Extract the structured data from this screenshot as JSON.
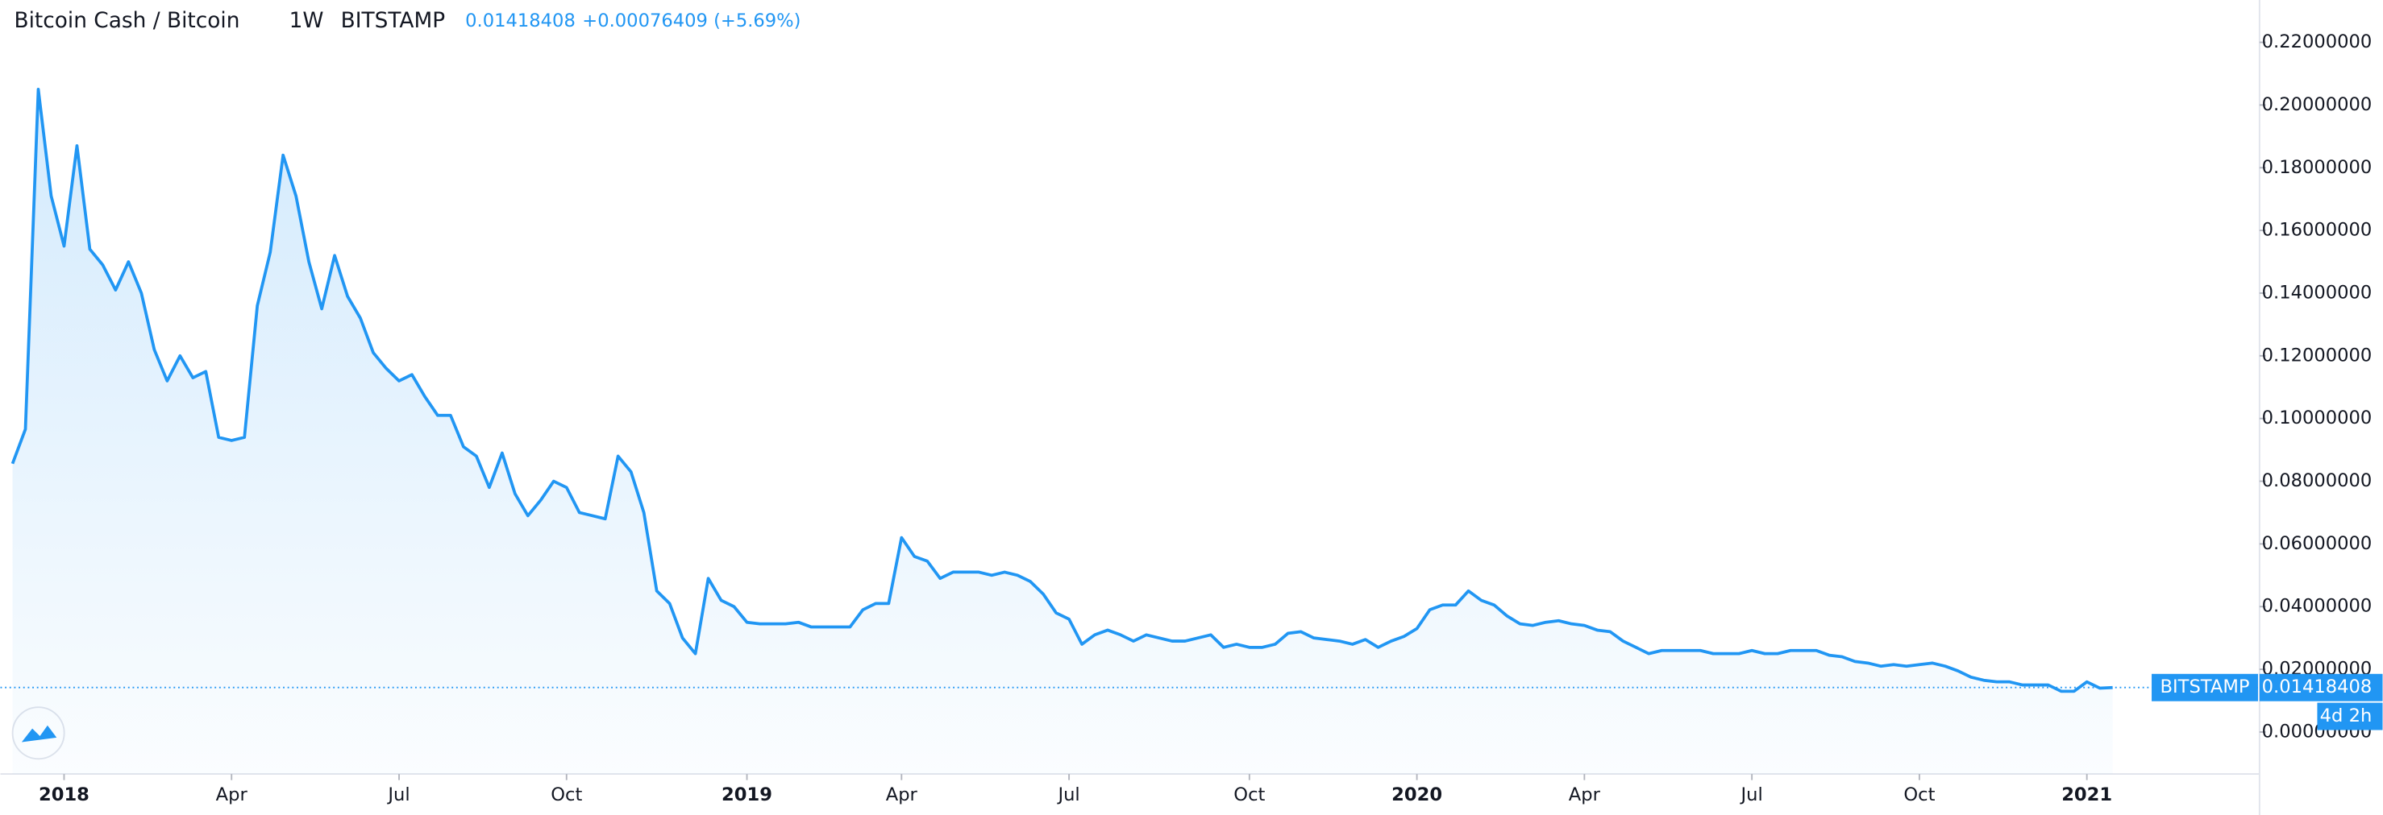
{
  "chart_data": {
    "type": "area",
    "title": "Bitcoin Cash / Bitcoin",
    "interval": "1W",
    "exchange": "BITSTAMP",
    "change": "+0.00076409 (+5.69%)",
    "countdown": "4d 2h",
    "color": "#2196f3",
    "categories": [
      null,
      null,
      null,
      null,
      null,
      null,
      null,
      null,
      null,
      null,
      null,
      null,
      null,
      null,
      null,
      null,
      null,
      null,
      null,
      null,
      null,
      null,
      null,
      null,
      null,
      null,
      null,
      null,
      null,
      null,
      null,
      null,
      null,
      null,
      null,
      null,
      null,
      null,
      null,
      null,
      null,
      null,
      null,
      null,
      null,
      null,
      null,
      null,
      null,
      null,
      null,
      null,
      null,
      null,
      null,
      null,
      null,
      null,
      null,
      null,
      null,
      null,
      null,
      null,
      null,
      null,
      null,
      null,
      null,
      null,
      null,
      null,
      null,
      null,
      null,
      null,
      null,
      null,
      null,
      null,
      null,
      null,
      null,
      null,
      null,
      null,
      null,
      null,
      null,
      null,
      null,
      null,
      null,
      null,
      null,
      null,
      null,
      null,
      null,
      null,
      null,
      null,
      null,
      null,
      null,
      null,
      null,
      null,
      null,
      null,
      null,
      null,
      null,
      null,
      null,
      null,
      null,
      null,
      null,
      null,
      null,
      null,
      null,
      null,
      null,
      null,
      null,
      null,
      null,
      null,
      null,
      null,
      null,
      null,
      null,
      null,
      null,
      null,
      null,
      null,
      null,
      null,
      null,
      null,
      null,
      null,
      null,
      null,
      null,
      null,
      null,
      null,
      null,
      null,
      null,
      null,
      null,
      null,
      null,
      null,
      null,
      null,
      null,
      null
    ],
    "values": [
      0.0856,
      0.0966,
      0.205,
      0.171,
      0.155,
      0.187,
      0.154,
      0.149,
      0.141,
      0.15,
      0.14,
      0.122,
      0.112,
      0.12,
      0.113,
      0.115,
      0.094,
      0.093,
      0.094,
      0.136,
      0.153,
      0.184,
      0.171,
      0.15,
      0.135,
      0.152,
      0.139,
      0.132,
      0.121,
      0.116,
      0.112,
      0.114,
      0.107,
      0.101,
      0.101,
      0.091,
      0.088,
      0.078,
      0.089,
      0.076,
      0.069,
      0.074,
      0.08,
      0.078,
      0.07,
      0.069,
      0.068,
      0.088,
      0.083,
      0.07,
      0.045,
      0.041,
      0.03,
      0.025,
      0.049,
      0.042,
      0.04,
      0.035,
      0.0345,
      0.0345,
      0.0345,
      0.035,
      0.0335,
      0.0335,
      0.0335,
      0.0335,
      0.039,
      0.041,
      0.041,
      0.062,
      0.056,
      0.0545,
      0.049,
      0.051,
      0.051,
      0.051,
      0.05,
      0.051,
      0.05,
      0.048,
      0.044,
      0.038,
      0.036,
      0.028,
      0.031,
      0.0325,
      0.031,
      0.029,
      0.031,
      0.03,
      0.029,
      0.029,
      0.03,
      0.031,
      0.027,
      0.028,
      0.027,
      0.027,
      0.028,
      0.0315,
      0.032,
      0.03,
      0.0295,
      0.029,
      0.028,
      0.0295,
      0.027,
      0.029,
      0.0305,
      0.033,
      0.039,
      0.0405,
      0.0405,
      0.045,
      0.042,
      0.0405,
      0.037,
      0.0345,
      0.034,
      0.035,
      0.0355,
      0.0345,
      0.034,
      0.0325,
      0.032,
      0.029,
      0.027,
      0.025,
      0.026,
      0.026,
      0.026,
      0.026,
      0.025,
      0.025,
      0.025,
      0.026,
      0.025,
      0.025,
      0.026,
      0.026,
      0.026,
      0.0245,
      0.024,
      0.0225,
      0.022,
      0.021,
      0.0215,
      0.021,
      0.0215,
      0.022,
      0.021,
      0.0195,
      0.0175,
      0.0165,
      0.016,
      0.016,
      0.015,
      0.015,
      0.015,
      0.013,
      0.013,
      0.016,
      0.014,
      0.01418408
    ],
    "value_labels": [
      null,
      null,
      null,
      null,
      null,
      null,
      null,
      null,
      null,
      null,
      null,
      null,
      null,
      null,
      null,
      null,
      null,
      null,
      null,
      null,
      null,
      null,
      null,
      null,
      null,
      null,
      null,
      null,
      null,
      null,
      null,
      null,
      null,
      null,
      null,
      null,
      null,
      null,
      null,
      null,
      null,
      null,
      null,
      null,
      null,
      null,
      null,
      null,
      null,
      null,
      null,
      null,
      null,
      null,
      null,
      null,
      null,
      null,
      null,
      null,
      null,
      null,
      null,
      null,
      null,
      null,
      null,
      null,
      null,
      null,
      null,
      null,
      null,
      null,
      null,
      null,
      null,
      null,
      null,
      null,
      null,
      null,
      null,
      null,
      null,
      null,
      null,
      null,
      null,
      null,
      null,
      null,
      null,
      null,
      null,
      null,
      null,
      null,
      null,
      null,
      null,
      null,
      null,
      null,
      null,
      null,
      null,
      null,
      null,
      null,
      null,
      null,
      null,
      null,
      null,
      null,
      null,
      null,
      null,
      null,
      null,
      null,
      null,
      null,
      null,
      null,
      null,
      null,
      null,
      null,
      null,
      null,
      null,
      null,
      null,
      null,
      null,
      null,
      null,
      null,
      null,
      null,
      null,
      null,
      null,
      null,
      null,
      null,
      null,
      null,
      null,
      null,
      null,
      null,
      null,
      null,
      null,
      null,
      null,
      null,
      null,
      null,
      null,
      "0.01418408"
    ],
    "xticks": [
      {
        "value": 4,
        "label": "2018"
      },
      {
        "value": 17,
        "label": "Apr"
      },
      {
        "value": 30,
        "label": "Jul"
      },
      {
        "value": 43,
        "label": "Oct"
      },
      {
        "value": 57,
        "label": "2019"
      },
      {
        "value": 69,
        "label": "Apr"
      },
      {
        "value": 82,
        "label": "Jul"
      },
      {
        "value": 96,
        "label": "Oct"
      },
      {
        "value": 109,
        "label": "2020"
      },
      {
        "value": 122,
        "label": "Apr"
      },
      {
        "value": 135,
        "label": "Jul"
      },
      {
        "value": 148,
        "label": "Oct"
      },
      {
        "value": 161,
        "label": "2021"
      }
    ],
    "xlim": [
      -0.94,
      174.4
    ],
    "ylim": [
      -0.0134,
      0.2335
    ],
    "yticks": [
      {
        "value": 0,
        "label": "0.00000000"
      },
      {
        "value": 0.02,
        "label": "0.02000000"
      },
      {
        "value": 0.04,
        "label": "0.04000000"
      },
      {
        "value": 0.06,
        "label": "0.06000000"
      },
      {
        "value": 0.08,
        "label": "0.08000000"
      },
      {
        "value": 0.1,
        "label": "0.10000000"
      },
      {
        "value": 0.12,
        "label": "0.12000000"
      },
      {
        "value": 0.14,
        "label": "0.14000000"
      },
      {
        "value": 0.16,
        "label": "0.16000000"
      },
      {
        "value": 0.18,
        "label": "0.18000000"
      },
      {
        "value": 0.2,
        "label": "0.20000000"
      },
      {
        "value": 0.22,
        "label": "0.22000000"
      }
    ]
  }
}
